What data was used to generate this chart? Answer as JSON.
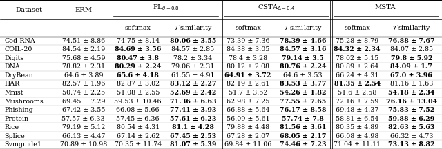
{
  "rows": [
    [
      "Cod-RNA",
      "74.51 ± 8.86",
      "74.75 ± 8.14",
      "80.06 ± 3.55",
      "73.39 ± 7.36",
      "78.39 ± 4.66",
      "75.28 ± 8.79",
      "76.88 ± 7.67"
    ],
    [
      "COIL-20",
      "84.54 ± 2.19",
      "84.69 ± 3.56",
      "84.57 ± 2.85",
      "84.38 ± 3.05",
      "84.57 ± 3.16",
      "84.32 ± 2.34",
      "84.07 ± 2.85"
    ],
    [
      "Digits",
      "75.68 ± 4.59",
      "80.47 ± 3.8",
      "78.2 ± 3.34",
      "78.4 ± 3.28",
      "79.14 ± 3.5",
      "78.02 ± 5.15",
      "79.8 ± 5.92"
    ],
    [
      "DNA",
      "78.82 ± 2.31",
      "80.29 ± 2.24",
      "79.06 ± 2.31",
      "80.12 ± 2.08",
      "80.76 ± 2.24",
      "80.89 ± 2.64",
      "84.09 ± 1.7"
    ],
    [
      "DryBean",
      "64.6 ± 3.89",
      "65.6 ± 4.18",
      "61.55 ± 4.91",
      "64.91 ± 3.72",
      "64.6 ± 3.53",
      "66.24 ± 4.31",
      "67.0 ± 3.96"
    ],
    [
      "HAR",
      "82.57 ± 1.96",
      "82.87 ± 3.02",
      "83.12 ± 2.27",
      "82.19 ± 2.61",
      "83.53 ± 3.77",
      "81.35 ± 2.54",
      "81.16 ± 1.63"
    ],
    [
      "Mnist",
      "50.74 ± 2.25",
      "51.08 ± 2.55",
      "52.69 ± 2.42",
      "51.7 ± 3.52",
      "54.26 ± 1.82",
      "51.6 ± 2.58",
      "54.18 ± 2.34"
    ],
    [
      "Mushrooms",
      "69.45 ± 7.29",
      "59.53 ± 10.46",
      "71.36 ± 6.63",
      "62.98 ± 7.25",
      "77.55 ± 7.65",
      "72.16 ± 7.59",
      "76.16 ± 13.04"
    ],
    [
      "Phishing",
      "67.42 ± 3.55",
      "66.08 ± 5.66",
      "77.41 ± 3.93",
      "66.88 ± 5.64",
      "76.17 ± 8.58",
      "69.48 ± 4.37",
      "75.83 ± 7.52"
    ],
    [
      "Protein",
      "57.57 ± 6.33",
      "57.45 ± 6.36",
      "57.61 ± 6.23",
      "56.09 ± 5.61",
      "57.74 ± 7.8",
      "58.81 ± 6.54",
      "59.88 ± 6.29"
    ],
    [
      "Rice",
      "79.19 ± 5.12",
      "80.54 ± 4.31",
      "81.1 ± 4.28",
      "79.88 ± 4.48",
      "81.56 ± 3.61",
      "80.35 ± 4.89",
      "82.63 ± 5.63"
    ],
    [
      "Splice",
      "66.13 ± 4.47",
      "67.14 ± 2.62",
      "67.45 ± 2.53",
      "67.28 ± 2.07",
      "68.05 ± 2.17",
      "66.08 ± 4.98",
      "66.32 ± 4.73"
    ],
    [
      "Svmguide1",
      "70.89 ± 10.98",
      "70.35 ± 11.74",
      "81.07 ± 5.39",
      "69.84 ± 11.06",
      "74.46 ± 7.23",
      "71.04 ± 11.11",
      "73.13 ± 8.82"
    ]
  ],
  "bold": [
    [
      false,
      false,
      true,
      false,
      true,
      false,
      true
    ],
    [
      false,
      true,
      false,
      false,
      true,
      true,
      false
    ],
    [
      false,
      true,
      false,
      false,
      true,
      false,
      true
    ],
    [
      false,
      true,
      false,
      false,
      true,
      false,
      true
    ],
    [
      false,
      true,
      false,
      true,
      false,
      false,
      true
    ],
    [
      false,
      false,
      true,
      false,
      true,
      true,
      false
    ],
    [
      false,
      false,
      true,
      false,
      true,
      false,
      true
    ],
    [
      false,
      false,
      true,
      false,
      true,
      false,
      true
    ],
    [
      false,
      false,
      true,
      false,
      true,
      false,
      true
    ],
    [
      false,
      false,
      true,
      false,
      true,
      false,
      true
    ],
    [
      false,
      false,
      true,
      false,
      true,
      false,
      true
    ],
    [
      false,
      false,
      true,
      false,
      true,
      false,
      false
    ],
    [
      false,
      false,
      true,
      false,
      true,
      false,
      true
    ]
  ],
  "font_size": 6.8,
  "header_font_size": 7.2,
  "bg_color": "#ffffff"
}
